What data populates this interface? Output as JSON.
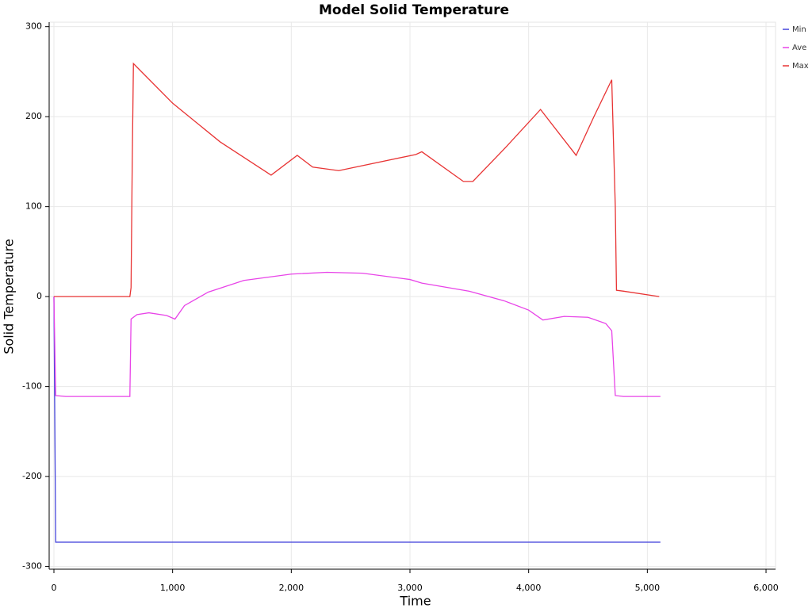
{
  "chart_data": {
    "type": "line",
    "title": "Model Solid Temperature",
    "x_label": "Time",
    "y_label": "Solid Temperature",
    "xlim": [
      -40,
      6080
    ],
    "ylim": [
      -303,
      305
    ],
    "xticks": [
      0,
      {
        "value": 1000,
        "label": "1,000"
      },
      {
        "value": 2000,
        "label": "2,000"
      },
      {
        "value": 3000,
        "label": "3,000"
      },
      {
        "value": 4000,
        "label": "4,000"
      },
      {
        "value": 5000,
        "label": "5,000"
      },
      {
        "value": 6000,
        "label": "6,000"
      }
    ],
    "yticks": [
      -300,
      -200,
      -100,
      0,
      100,
      200,
      300
    ],
    "grid": true,
    "legend": "top-right",
    "series": [
      {
        "name": "Min",
        "color": "#4646dc",
        "x": [
          0,
          15,
          5110
        ],
        "values": [
          0,
          -273,
          -273
        ]
      },
      {
        "name": "Ave",
        "color": "#e844e8",
        "x": [
          0,
          15,
          100,
          640,
          650,
          700,
          800,
          950,
          1020,
          1100,
          1300,
          1600,
          2000,
          2300,
          2600,
          3000,
          3100,
          3500,
          3800,
          4000,
          4120,
          4300,
          4500,
          4650,
          4700,
          4730,
          4800,
          5110
        ],
        "values": [
          0,
          -110,
          -111,
          -111,
          -25,
          -20,
          -18,
          -21,
          -25,
          -10,
          5,
          18,
          25,
          27,
          26,
          19,
          15,
          6,
          -5,
          -15,
          -26,
          -22,
          -23,
          -30,
          -38,
          -110,
          -111,
          -111
        ]
      },
      {
        "name": "Max",
        "color": "#e83434",
        "x": [
          0,
          640,
          650,
          660,
          670,
          700,
          1000,
          1400,
          1830,
          2050,
          2180,
          2400,
          3050,
          3100,
          3450,
          3530,
          3800,
          4100,
          4400,
          4550,
          4700,
          4730,
          4740,
          4800,
          5100
        ],
        "values": [
          0,
          0,
          10,
          150,
          259,
          255,
          215,
          172,
          135,
          157,
          144,
          140,
          158,
          161,
          128,
          128,
          165,
          208,
          157,
          200,
          241,
          100,
          7,
          6,
          0
        ]
      }
    ]
  }
}
